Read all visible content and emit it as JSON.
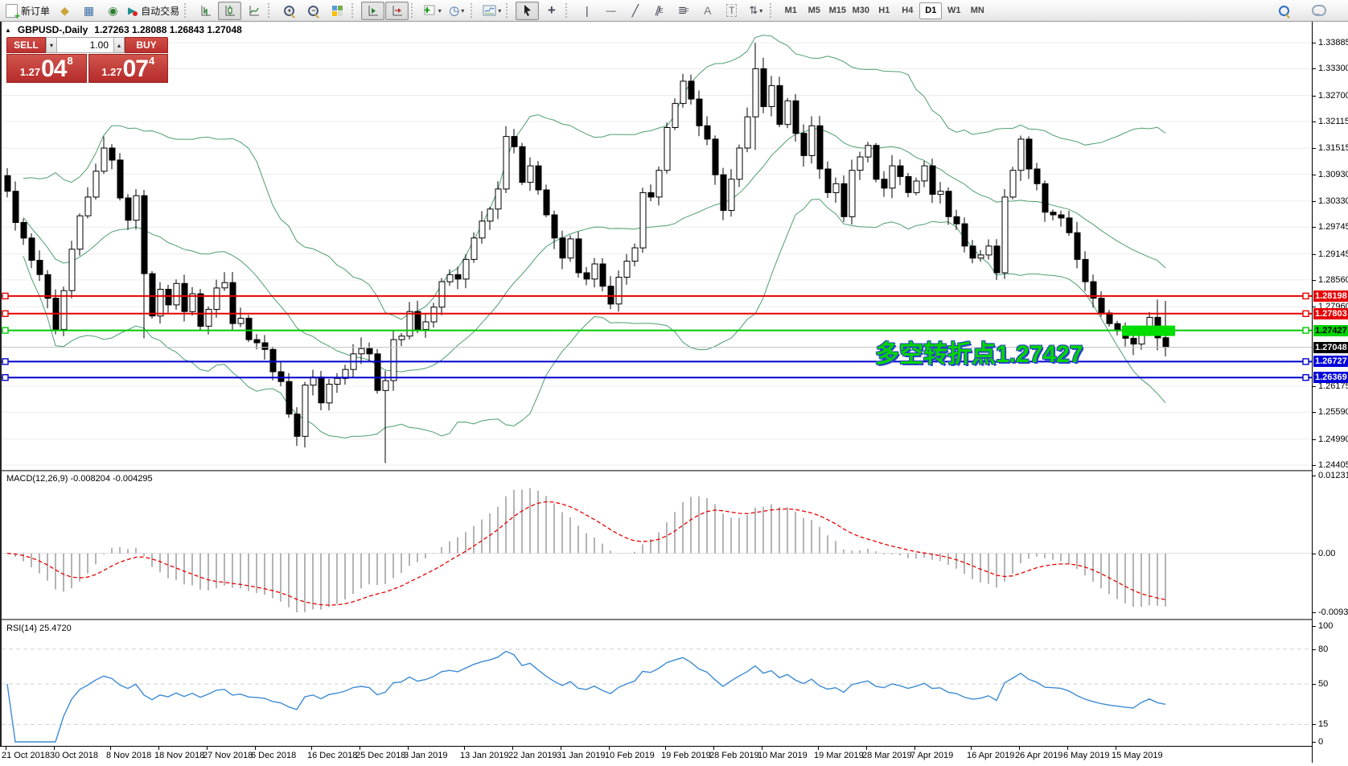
{
  "icons": {
    "collapse": "▲",
    "caret_down": "▾",
    "caret_up": "▴",
    "dropdown": "▾",
    "quotes": "◆",
    "data_window": "▦",
    "signals": "◉",
    "auto_trading": "▶",
    "crosshair": "+",
    "vline": "|",
    "hline": "—",
    "trend": "╱",
    "channel": "∥",
    "fibo": "≣",
    "text_a": "A",
    "label_t": "T",
    "arrows": "⇅",
    "clock": "◷",
    "plus": "+",
    "minus": "−",
    "sub_e": "E",
    "sub_f": "F"
  },
  "toolbar": {
    "new_order_label": "新订单",
    "auto_trading_label": "自动交易",
    "timeframes": [
      "M1",
      "M5",
      "M15",
      "M30",
      "H1",
      "H4",
      "D1",
      "W1",
      "MN"
    ],
    "active_timeframe": "D1"
  },
  "chart_header": {
    "symbol": "GBPUSD-,Daily",
    "ohlc": "1.27263 1.28088 1.26843 1.27048"
  },
  "trade_panel": {
    "sell_label": "SELL",
    "buy_label": "BUY",
    "volume": "1.00",
    "sell_price": {
      "prefix": "1.27",
      "big": "04",
      "sup": "8"
    },
    "buy_price": {
      "prefix": "1.27",
      "big": "07",
      "sup": "4"
    }
  },
  "price_axis": {
    "ticks": [
      "1.33885",
      "1.33300",
      "1.32700",
      "1.32115",
      "1.31515",
      "1.30930",
      "1.30330",
      "1.29745",
      "1.29145",
      "1.28560",
      "1.27960",
      "1.26175",
      "1.25590",
      "1.24990",
      "1.24405"
    ],
    "levels": [
      {
        "label": "1.28198",
        "price": 1.28198,
        "badge_bg": "#e60000",
        "badge_fg": "#ffffff",
        "line": "#e60000",
        "width": 2,
        "squares": true
      },
      {
        "label": "1.27803",
        "price": 1.27803,
        "badge_bg": "#e60000",
        "badge_fg": "#ffffff",
        "line": "#e60000",
        "width": 2,
        "squares": true
      },
      {
        "label": "1.27427",
        "price": 1.27427,
        "badge_bg": "#00d300",
        "badge_fg": "#000000",
        "line": "#00c800",
        "width": 2,
        "squares": true
      },
      {
        "label": "1.27048",
        "price": 1.27048,
        "badge_bg": "#000000",
        "badge_fg": "#ffffff",
        "line": "#c0c0c0",
        "width": 1,
        "squares": false
      },
      {
        "label": "1.26727",
        "price": 1.26727,
        "badge_bg": "#0000dc",
        "badge_fg": "#ffffff",
        "line": "#0000cc",
        "width": 2,
        "squares": true
      },
      {
        "label": "1.26369",
        "price": 1.26369,
        "badge_bg": "#0000dc",
        "badge_fg": "#ffffff",
        "line": "#0000cc",
        "width": 2,
        "squares": true
      }
    ]
  },
  "macd_panel": {
    "label": "MACD(12,26,9) -0.008204 -0.004295",
    "axis_max": "0.012312",
    "axis_zero": "0.00",
    "axis_min": "-0.009328"
  },
  "rsi_panel": {
    "label": "RSI(14) 25.4720",
    "axis": [
      "100",
      "80",
      "50",
      "15",
      "0"
    ],
    "guides": [
      80,
      50,
      15
    ]
  },
  "annotation": {
    "text": "多空转折点1.27427"
  },
  "chart_data": {
    "type": "candlestick",
    "symbol": "GBPUSD-,Daily",
    "ylim": [
      1.24405,
      1.33885
    ],
    "dates": [
      "21 Oct 2018",
      "30 Oct 2018",
      "8 Nov 2018",
      "18 Nov 2018",
      "27 Nov 2018",
      "6 Dec 2018",
      "16 Dec 2018",
      "25 Dec 2018",
      "3 Jan 2019",
      "13 Jan 2019",
      "22 Jan 2019",
      "31 Jan 2019",
      "10 Feb 2019",
      "19 Feb 2019",
      "28 Feb 2019",
      "10 Mar 2019",
      "19 Mar 2019",
      "28 Mar 2019",
      "7 Apr 2019",
      "16 Apr 2019",
      "26 Apr 2019",
      "6 May 2019",
      "15 May 2019"
    ],
    "closes": [
      1.3055,
      1.2985,
      1.295,
      1.29,
      1.2868,
      1.2815,
      1.2745,
      1.2832,
      1.2925,
      1.3,
      1.3042,
      1.31,
      1.3152,
      1.3125,
      1.304,
      1.299,
      1.3045,
      1.287,
      1.2775,
      1.2835,
      1.28,
      1.2848,
      1.2785,
      1.2825,
      1.2752,
      1.279,
      1.2838,
      1.285,
      1.2758,
      1.277,
      1.2722,
      1.2715,
      1.27,
      1.265,
      1.2628,
      1.2555,
      1.2505,
      1.262,
      1.2638,
      1.258,
      1.2622,
      1.2635,
      1.2655,
      1.269,
      1.2702,
      1.269,
      1.2608,
      1.263,
      1.2722,
      1.273,
      1.2785,
      1.2745,
      1.2762,
      1.2795,
      1.2852,
      1.2868,
      1.2858,
      1.2902,
      1.295,
      1.2988,
      1.3015,
      1.306,
      1.3178,
      1.3155,
      1.3075,
      1.3112,
      1.3058,
      1.3002,
      1.295,
      1.2905,
      1.2948,
      1.2872,
      1.2858,
      1.2892,
      1.2842,
      1.2802,
      1.2862,
      1.2898,
      1.2928,
      1.3052,
      1.3042,
      1.3102,
      1.3198,
      1.3252,
      1.3302,
      1.3262,
      1.3202,
      1.3172,
      1.3092,
      1.3012,
      1.3082,
      1.3152,
      1.3222,
      1.333,
      1.3245,
      1.3292,
      1.3205,
      1.3258,
      1.3185,
      1.3135,
      1.3202,
      1.3105,
      1.3052,
      1.3072,
      1.2998,
      1.3102,
      1.3132,
      1.3158,
      1.3082,
      1.3062,
      1.3112,
      1.3088,
      1.3052,
      1.3078,
      1.3112,
      1.3048,
      1.3055,
      1.2998,
      1.2982,
      1.2932,
      1.2905,
      1.2912,
      1.2932,
      1.2872,
      1.3042,
      1.3102,
      1.3172,
      1.3105,
      1.3072,
      1.3008,
      1.3002,
      1.2995,
      1.2962,
      1.2902,
      1.2852,
      1.2815,
      1.2782,
      1.2758,
      1.2742,
      1.2725,
      1.2712,
      1.2748,
      1.2772,
      1.2726,
      1.27048
    ],
    "key_candles": {
      "12": {
        "h": 1.3178
      },
      "17": {
        "o": 1.3045,
        "h": 1.3058,
        "l": 1.2725,
        "c": 1.287
      },
      "47": {
        "o": 1.2608,
        "h": 1.2652,
        "l": 1.2445,
        "c": 1.263
      },
      "93": {
        "o": 1.3222,
        "h": 1.3388,
        "l": 1.3148,
        "c": 1.333
      },
      "143": {
        "o": 1.2772,
        "h": 1.2812,
        "l": 1.2698,
        "c": 1.2726
      },
      "144": {
        "o": 1.27263,
        "h": 1.28088,
        "l": 1.26843,
        "c": 1.27048
      }
    },
    "indicators": [
      "Bollinger Bands(20,2)",
      "MACD(12,26,9)",
      "RSI(14)"
    ],
    "horizontal_levels": [
      1.28198,
      1.27803,
      1.27427,
      1.27048,
      1.26727,
      1.26369
    ],
    "highlight_level": 1.27427
  },
  "colors": {
    "band_green": "#4d9e70",
    "macd_hist": "#b4b4b4",
    "macd_signal": "#e60000",
    "rsi_blue": "#3d8bd4",
    "grid": "#ececec",
    "highlight_green": "#00dd00",
    "panel_red": "#c43c3c"
  }
}
